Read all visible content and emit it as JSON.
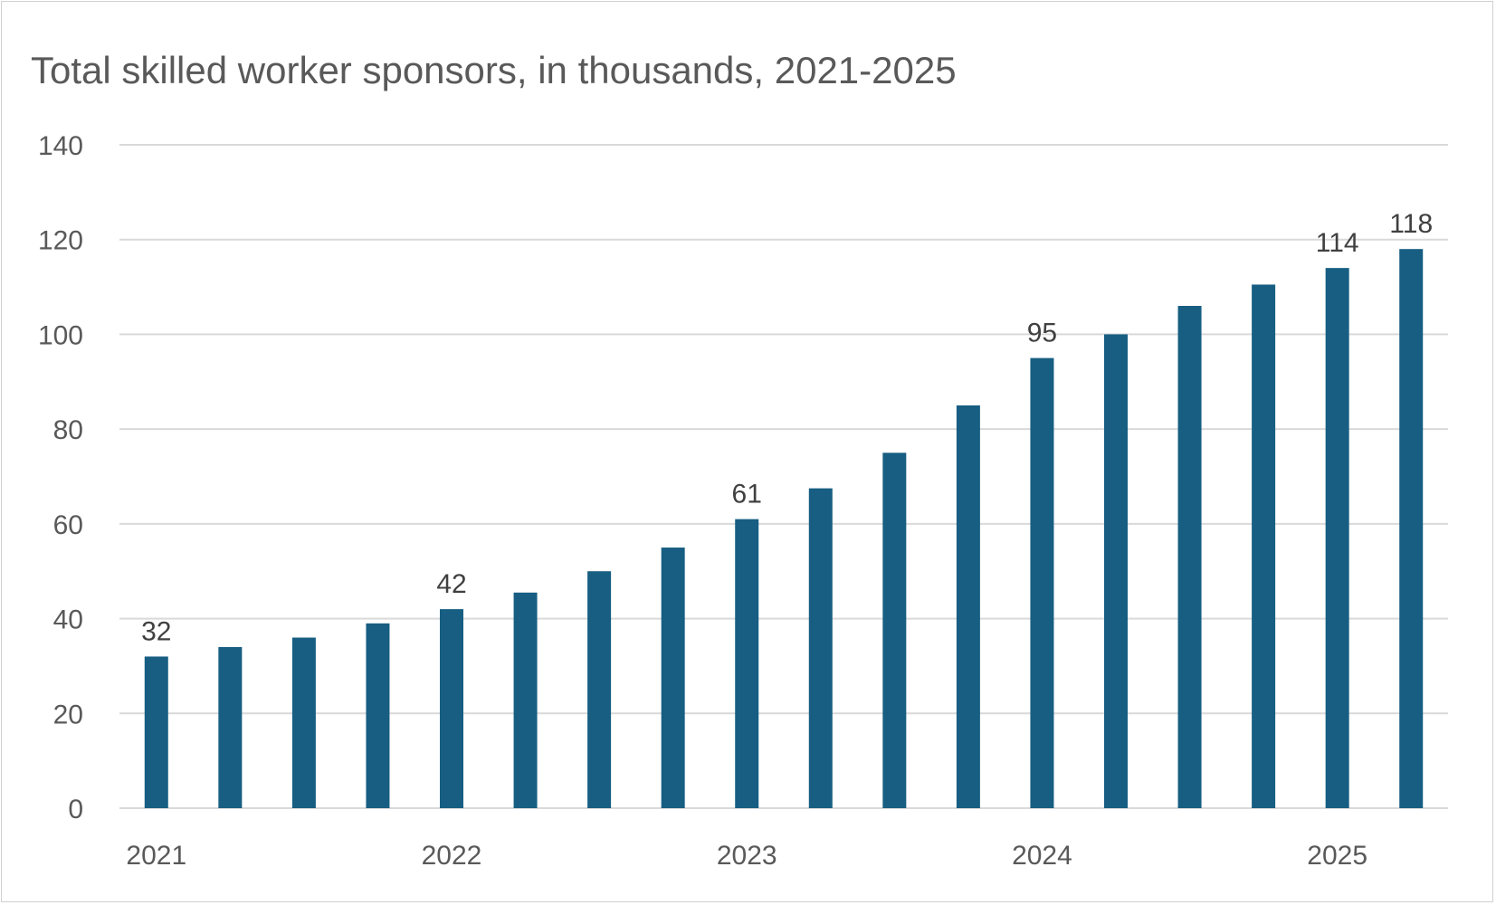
{
  "chart_data": {
    "type": "bar",
    "title": "Total skilled worker sponsors, in thousands, 2021-2025",
    "xlabel": "",
    "ylabel": "",
    "ylim": [
      0,
      140
    ],
    "yticks": [
      0,
      20,
      40,
      60,
      80,
      100,
      120,
      140
    ],
    "grid": true,
    "x_tick_labels": [
      {
        "index": 0,
        "label": "2021"
      },
      {
        "index": 4,
        "label": "2022"
      },
      {
        "index": 8,
        "label": "2023"
      },
      {
        "index": 12,
        "label": "2024"
      },
      {
        "index": 16,
        "label": "2025"
      }
    ],
    "values": [
      32,
      34,
      36,
      39,
      42,
      45.5,
      50,
      55,
      61,
      67.5,
      75,
      85,
      95,
      100,
      106,
      110.5,
      114,
      118
    ],
    "data_labels": [
      {
        "index": 0,
        "label": "32"
      },
      {
        "index": 4,
        "label": "42"
      },
      {
        "index": 8,
        "label": "61"
      },
      {
        "index": 12,
        "label": "95"
      },
      {
        "index": 16,
        "label": "114"
      },
      {
        "index": 17,
        "label": "118"
      }
    ],
    "colors": {
      "bar": "#175e82",
      "grid": "#d9d9d9",
      "text": "#595959"
    }
  }
}
